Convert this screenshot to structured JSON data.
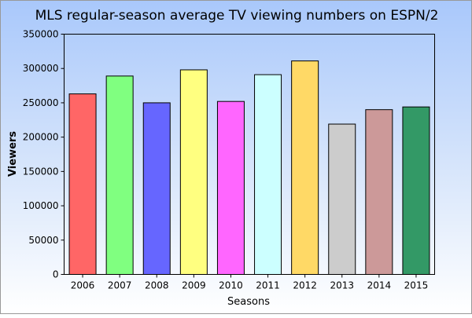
{
  "chart_data": {
    "type": "bar",
    "title": "MLS regular-season average TV viewing numbers on ESPN/2",
    "xlabel": "Seasons",
    "ylabel": "Viewers",
    "categories": [
      "2006",
      "2007",
      "2008",
      "2009",
      "2010",
      "2011",
      "2012",
      "2013",
      "2014",
      "2015"
    ],
    "values": [
      263000,
      289000,
      250000,
      298000,
      252000,
      291000,
      311000,
      219000,
      240000,
      244000
    ],
    "colors": [
      "#ff6666",
      "#80ff80",
      "#6666ff",
      "#ffff80",
      "#ff66ff",
      "#ccffff",
      "#ffd966",
      "#cccccc",
      "#cc9999",
      "#339966"
    ],
    "ylim": [
      0,
      350000
    ],
    "yticks": [
      "0",
      "50000",
      "100000",
      "150000",
      "200000",
      "250000",
      "300000",
      "350000"
    ],
    "grid": false,
    "legend": "none"
  }
}
